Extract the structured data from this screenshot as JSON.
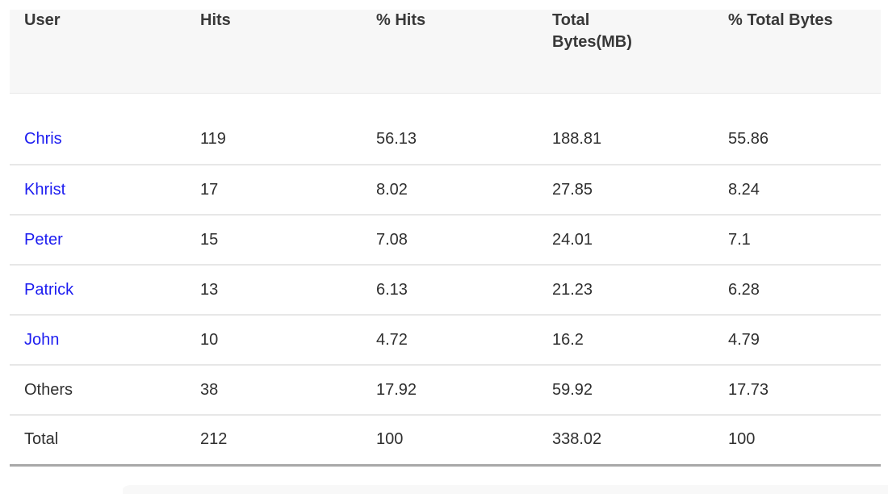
{
  "table": {
    "columns": [
      {
        "key": "user",
        "label": "User"
      },
      {
        "key": "hits",
        "label": "Hits"
      },
      {
        "key": "pct_hits",
        "label": "% Hits"
      },
      {
        "key": "total_bytes",
        "label": "Total Bytes(MB)"
      },
      {
        "key": "pct_total_bytes",
        "label": "% Total Bytes"
      }
    ],
    "rows": [
      {
        "user": "Chris",
        "is_link": true,
        "is_total": false,
        "hits": "119",
        "pct_hits": "56.13",
        "total_bytes": "188.81",
        "pct_total_bytes": "55.86"
      },
      {
        "user": "Khrist",
        "is_link": true,
        "is_total": false,
        "hits": "17",
        "pct_hits": "8.02",
        "total_bytes": "27.85",
        "pct_total_bytes": "8.24"
      },
      {
        "user": "Peter",
        "is_link": true,
        "is_total": false,
        "hits": "15",
        "pct_hits": "7.08",
        "total_bytes": "24.01",
        "pct_total_bytes": "7.1"
      },
      {
        "user": "Patrick",
        "is_link": true,
        "is_total": false,
        "hits": "13",
        "pct_hits": "6.13",
        "total_bytes": "21.23",
        "pct_total_bytes": "6.28"
      },
      {
        "user": "John",
        "is_link": true,
        "is_total": false,
        "hits": "10",
        "pct_hits": "4.72",
        "total_bytes": "16.2",
        "pct_total_bytes": "4.79"
      },
      {
        "user": "Others",
        "is_link": false,
        "is_total": false,
        "hits": "38",
        "pct_hits": "17.92",
        "total_bytes": "59.92",
        "pct_total_bytes": "17.73"
      },
      {
        "user": "Total",
        "is_link": false,
        "is_total": true,
        "hits": "212",
        "pct_hits": "100",
        "total_bytes": "338.02",
        "pct_total_bytes": "100"
      }
    ]
  },
  "colors": {
    "link_blue": "#1d1df0",
    "header_bg": "#f7f7f7",
    "body_text": "#2f2f2f",
    "header_text": "#383838",
    "row_divider": "#e7e7e7",
    "total_rule": "#a8a8a8"
  }
}
